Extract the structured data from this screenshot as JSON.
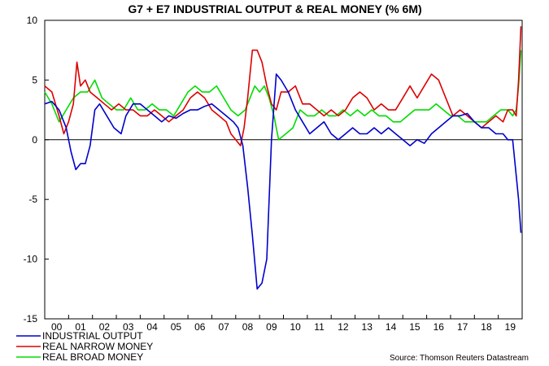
{
  "chart_data": {
    "type": "line",
    "title": "G7 + E7 INDUSTRIAL OUTPUT & REAL MONEY (% 6M)",
    "xlabel": "",
    "ylabel": "",
    "ylim": [
      -15,
      10
    ],
    "xlim": [
      2000,
      2020
    ],
    "y_ticks": [
      10,
      5,
      0,
      -5,
      -10,
      -15
    ],
    "y_tick_labels": [
      "10",
      "5",
      "0",
      "-5",
      "-10",
      "-15"
    ],
    "x_ticks": [
      2000.5,
      2001.5,
      2002.5,
      2003.5,
      2004.5,
      2005.5,
      2006.5,
      2007.5,
      2008.5,
      2009.5,
      2010.5,
      2011.5,
      2012.5,
      2013.5,
      2014.5,
      2015.5,
      2016.5,
      2017.5,
      2018.5,
      2019.5
    ],
    "x_tick_labels": [
      "00",
      "01",
      "02",
      "03",
      "04",
      "05",
      "06",
      "07",
      "08",
      "09",
      "10",
      "11",
      "12",
      "13",
      "14",
      "15",
      "16",
      "17",
      "18",
      "19"
    ],
    "zero_line": 0,
    "legend_position": "bottom-left",
    "source": "Source: Thomson Reuters Datastream",
    "series": [
      {
        "name": "INDUSTRIAL OUTPUT",
        "color": "#0000cc",
        "x": [
          2000.0,
          2000.3,
          2000.6,
          2000.9,
          2001.1,
          2001.3,
          2001.5,
          2001.7,
          2001.9,
          2002.1,
          2002.3,
          2002.6,
          2002.9,
          2003.2,
          2003.4,
          2003.7,
          2004.0,
          2004.3,
          2004.6,
          2004.9,
          2005.2,
          2005.5,
          2005.8,
          2006.1,
          2006.4,
          2006.7,
          2007.0,
          2007.3,
          2007.6,
          2007.9,
          2008.1,
          2008.3,
          2008.5,
          2008.7,
          2008.9,
          2009.1,
          2009.3,
          2009.5,
          2009.7,
          2009.9,
          2010.2,
          2010.5,
          2010.8,
          2011.1,
          2011.4,
          2011.7,
          2012.0,
          2012.3,
          2012.6,
          2012.9,
          2013.2,
          2013.5,
          2013.8,
          2014.1,
          2014.4,
          2014.7,
          2015.0,
          2015.3,
          2015.6,
          2015.9,
          2016.2,
          2016.5,
          2016.8,
          2017.1,
          2017.4,
          2017.7,
          2018.0,
          2018.3,
          2018.6,
          2018.9,
          2019.2,
          2019.4,
          2019.6,
          2019.75,
          2019.85,
          2019.95
        ],
        "y": [
          3.0,
          3.2,
          2.5,
          1.0,
          -1.0,
          -2.5,
          -2.0,
          -2.0,
          -0.5,
          2.5,
          3.0,
          2.0,
          1.0,
          0.5,
          2.0,
          3.0,
          3.0,
          2.5,
          2.0,
          1.5,
          2.0,
          1.8,
          2.2,
          2.5,
          2.5,
          2.8,
          3.0,
          2.5,
          2.0,
          1.5,
          1.0,
          -0.5,
          -4.0,
          -8.0,
          -12.5,
          -12.0,
          -10.0,
          0.0,
          5.5,
          5.0,
          4.0,
          2.5,
          1.5,
          0.5,
          1.0,
          1.5,
          0.5,
          0.0,
          0.5,
          1.0,
          0.5,
          0.5,
          1.0,
          0.5,
          1.0,
          0.5,
          0.0,
          -0.5,
          0.0,
          -0.3,
          0.5,
          1.0,
          1.5,
          2.0,
          2.0,
          2.2,
          1.5,
          1.0,
          1.0,
          0.5,
          0.5,
          0.0,
          0.0,
          -3.0,
          -5.0,
          -7.8
        ]
      },
      {
        "name": "REAL NARROW MONEY",
        "color": "#dd0000",
        "x": [
          2000.0,
          2000.3,
          2000.6,
          2000.8,
          2001.0,
          2001.2,
          2001.35,
          2001.5,
          2001.7,
          2001.9,
          2002.2,
          2002.5,
          2002.8,
          2003.1,
          2003.4,
          2003.7,
          2004.0,
          2004.3,
          2004.6,
          2004.9,
          2005.2,
          2005.5,
          2005.8,
          2006.1,
          2006.4,
          2006.7,
          2007.0,
          2007.3,
          2007.6,
          2007.8,
          2008.0,
          2008.2,
          2008.35,
          2008.5,
          2008.7,
          2008.9,
          2009.1,
          2009.3,
          2009.5,
          2009.7,
          2009.9,
          2010.2,
          2010.5,
          2010.8,
          2011.1,
          2011.4,
          2011.7,
          2012.0,
          2012.3,
          2012.6,
          2012.9,
          2013.2,
          2013.5,
          2013.8,
          2014.1,
          2014.4,
          2014.7,
          2015.0,
          2015.3,
          2015.6,
          2015.9,
          2016.2,
          2016.5,
          2016.8,
          2017.1,
          2017.4,
          2017.7,
          2018.0,
          2018.3,
          2018.6,
          2018.9,
          2019.2,
          2019.4,
          2019.6,
          2019.75,
          2019.85,
          2019.95
        ],
        "y": [
          4.5,
          4.0,
          2.0,
          0.5,
          1.5,
          3.0,
          6.5,
          4.5,
          5.0,
          4.0,
          3.5,
          3.0,
          2.5,
          3.0,
          2.5,
          2.5,
          2.0,
          2.0,
          2.5,
          2.0,
          1.5,
          2.0,
          2.5,
          3.5,
          4.0,
          3.5,
          2.5,
          2.0,
          1.5,
          0.5,
          0.0,
          -0.5,
          1.0,
          3.5,
          7.5,
          7.5,
          6.5,
          4.5,
          3.0,
          2.5,
          4.0,
          4.0,
          4.5,
          3.0,
          3.0,
          2.5,
          2.0,
          2.5,
          2.0,
          2.5,
          3.5,
          4.0,
          3.5,
          2.5,
          3.0,
          2.5,
          2.5,
          3.5,
          4.5,
          3.5,
          4.5,
          5.5,
          5.0,
          3.5,
          2.0,
          2.5,
          2.0,
          1.5,
          1.0,
          1.5,
          2.0,
          1.5,
          2.5,
          2.5,
          2.0,
          5.0,
          9.5
        ]
      },
      {
        "name": "REAL BROAD MONEY",
        "color": "#00dd00",
        "x": [
          2000.0,
          2000.3,
          2000.6,
          2000.9,
          2001.2,
          2001.5,
          2001.8,
          2002.1,
          2002.4,
          2002.7,
          2003.0,
          2003.3,
          2003.6,
          2003.9,
          2004.2,
          2004.5,
          2004.8,
          2005.1,
          2005.4,
          2005.7,
          2006.0,
          2006.3,
          2006.6,
          2006.9,
          2007.2,
          2007.5,
          2007.8,
          2008.1,
          2008.4,
          2008.6,
          2008.8,
          2009.0,
          2009.2,
          2009.4,
          2009.6,
          2009.8,
          2010.1,
          2010.4,
          2010.7,
          2011.0,
          2011.3,
          2011.6,
          2011.9,
          2012.2,
          2012.5,
          2012.8,
          2013.1,
          2013.4,
          2013.7,
          2014.0,
          2014.3,
          2014.6,
          2014.9,
          2015.2,
          2015.5,
          2015.8,
          2016.1,
          2016.4,
          2016.7,
          2017.0,
          2017.3,
          2017.6,
          2017.9,
          2018.2,
          2018.5,
          2018.8,
          2019.1,
          2019.4,
          2019.6,
          2019.75,
          2019.85,
          2019.95
        ],
        "y": [
          4.0,
          3.0,
          1.5,
          2.5,
          3.5,
          4.0,
          4.0,
          5.0,
          3.5,
          3.0,
          2.5,
          2.5,
          3.5,
          2.5,
          2.5,
          3.0,
          2.5,
          2.5,
          2.0,
          3.0,
          4.0,
          4.5,
          4.0,
          4.0,
          4.5,
          3.5,
          2.5,
          2.0,
          2.5,
          3.5,
          4.5,
          4.0,
          4.5,
          3.5,
          2.0,
          0.0,
          0.5,
          1.0,
          2.5,
          2.0,
          2.0,
          2.5,
          2.0,
          2.0,
          2.5,
          2.0,
          2.5,
          2.0,
          2.5,
          2.0,
          2.0,
          1.5,
          1.5,
          2.0,
          2.5,
          2.5,
          2.5,
          3.0,
          2.5,
          2.0,
          2.0,
          1.5,
          1.5,
          1.5,
          1.5,
          2.0,
          2.5,
          2.5,
          2.0,
          2.5,
          4.5,
          7.5
        ]
      }
    ]
  }
}
